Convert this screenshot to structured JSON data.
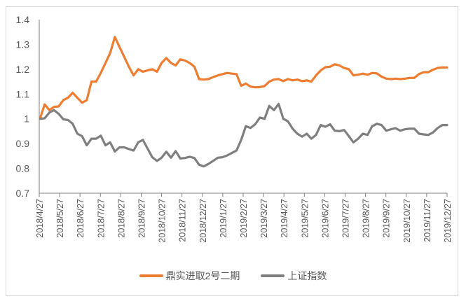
{
  "chart_data": {
    "type": "line",
    "title": "",
    "xlabel": "",
    "ylabel": "",
    "ylim": [
      0.7,
      1.4
    ],
    "y_ticks": [
      "1.4",
      "1.3",
      "1.2",
      "1.1",
      "1",
      "0.9",
      "0.8",
      "0.7"
    ],
    "y_tick_values": [
      1.4,
      1.3,
      1.2,
      1.1,
      1.0,
      0.9,
      0.8,
      0.7
    ],
    "grid": false,
    "legend_position": "bottom",
    "x_tick_labels": [
      "2018/4/27",
      "2018/5/27",
      "2018/6/27",
      "2018/7/27",
      "2018/8/27",
      "2018/9/27",
      "2018/10/27",
      "2018/11/27",
      "2018/12/27",
      "2019/1/27",
      "2019/2/27",
      "2019/3/27",
      "2019/4/27",
      "2019/5/27",
      "2019/6/27",
      "2019/7/27",
      "2019/8/27",
      "2019/9/27",
      "2019/10/27",
      "2019/11/27",
      "2019/12/27"
    ],
    "series": [
      {
        "name": "鼎实进取2号二期",
        "color": "#ED7D31",
        "values": [
          1.0,
          1.058,
          1.035,
          1.048,
          1.05,
          1.075,
          1.085,
          1.105,
          1.085,
          1.065,
          1.075,
          1.15,
          1.15,
          1.185,
          1.225,
          1.265,
          1.33,
          1.29,
          1.25,
          1.21,
          1.175,
          1.2,
          1.19,
          1.195,
          1.2,
          1.19,
          1.225,
          1.245,
          1.225,
          1.215,
          1.24,
          1.235,
          1.225,
          1.21,
          1.16,
          1.158,
          1.16,
          1.168,
          1.175,
          1.18,
          1.185,
          1.182,
          1.18,
          1.133,
          1.142,
          1.13,
          1.127,
          1.128,
          1.132,
          1.15,
          1.158,
          1.16,
          1.152,
          1.16,
          1.155,
          1.158,
          1.152,
          1.155,
          1.15,
          1.175,
          1.195,
          1.208,
          1.21,
          1.22,
          1.215,
          1.205,
          1.2,
          1.175,
          1.178,
          1.182,
          1.178,
          1.185,
          1.183,
          1.17,
          1.162,
          1.16,
          1.162,
          1.16,
          1.162,
          1.165,
          1.165,
          1.18,
          1.188,
          1.188,
          1.198,
          1.205,
          1.207,
          1.207
        ]
      },
      {
        "name": "上证指数",
        "color": "#7F7F7F",
        "values": [
          1.0,
          1.002,
          1.025,
          1.035,
          1.02,
          0.998,
          0.995,
          0.98,
          0.94,
          0.93,
          0.893,
          0.92,
          0.92,
          0.932,
          0.893,
          0.905,
          0.868,
          0.885,
          0.885,
          0.878,
          0.872,
          0.905,
          0.915,
          0.88,
          0.845,
          0.83,
          0.843,
          0.867,
          0.843,
          0.87,
          0.84,
          0.842,
          0.847,
          0.842,
          0.815,
          0.808,
          0.818,
          0.83,
          0.843,
          0.845,
          0.852,
          0.862,
          0.872,
          0.915,
          0.97,
          0.963,
          0.978,
          1.005,
          1.0,
          1.052,
          1.035,
          1.06,
          1.0,
          0.99,
          0.96,
          0.94,
          0.928,
          0.94,
          0.92,
          0.935,
          0.975,
          0.968,
          0.978,
          0.952,
          0.95,
          0.955,
          0.93,
          0.905,
          0.92,
          0.94,
          0.935,
          0.97,
          0.98,
          0.975,
          0.952,
          0.958,
          0.962,
          0.952,
          0.958,
          0.96,
          0.96,
          0.94,
          0.937,
          0.935,
          0.945,
          0.963,
          0.975,
          0.975
        ]
      }
    ]
  },
  "legend": {
    "items": [
      {
        "label": "鼎实进取2号二期",
        "color": "#ED7D31"
      },
      {
        "label": "上证指数",
        "color": "#7F7F7F"
      }
    ]
  }
}
